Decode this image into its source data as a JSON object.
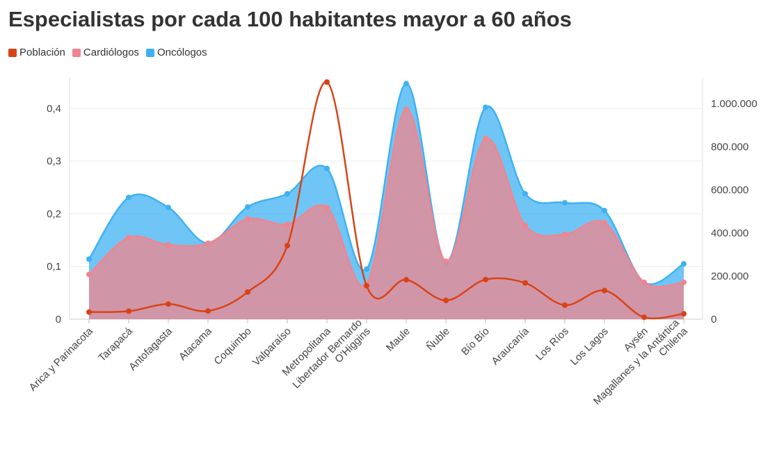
{
  "chart_data": {
    "type": "area",
    "title": "Especialistas por cada 100 habitantes mayor a 60 años",
    "categories": [
      "Arica y Parinacota",
      "Tarapacá",
      "Antofagasta",
      "Atacama",
      "Coquimbo",
      "Valparaíso",
      "Metropolitana",
      "Libertador Bernardo\nO'Higgins",
      "Maule",
      "Ñuble",
      "Bío Bío",
      "Araucanía",
      "Los Ríos",
      "Los Lagos",
      "Aysén",
      "Magallanes y la Antártica\nChilena"
    ],
    "y_left": {
      "ticks": [
        0,
        0.1,
        0.2,
        0.3,
        0.4
      ],
      "tick_labels": [
        "0",
        "0,1",
        "0,2",
        "0,3",
        "0,4"
      ],
      "ylim": [
        0,
        0.45
      ]
    },
    "y_right": {
      "ticks": [
        0,
        200000,
        400000,
        600000,
        800000,
        1000000
      ],
      "tick_labels": [
        "0",
        "200.000",
        "400.000",
        "600.000",
        "800.000",
        "1.000.000"
      ],
      "ylim": [
        0,
        1100000
      ]
    },
    "grid": true,
    "legend_position": "top-left",
    "series": [
      {
        "name": "Población",
        "kind": "line",
        "axis": "right",
        "color": "#d84315",
        "values": [
          33000,
          37000,
          70000,
          38000,
          126000,
          341000,
          1100000,
          155000,
          183000,
          87000,
          184000,
          168000,
          65000,
          133000,
          9000,
          25000
        ]
      },
      {
        "name": "Cardiólogos",
        "kind": "area",
        "axis": "left",
        "color": "#f2848e",
        "values": [
          0.085,
          0.155,
          0.141,
          0.144,
          0.19,
          0.18,
          0.212,
          0.067,
          0.398,
          0.11,
          0.343,
          0.178,
          0.161,
          0.183,
          0.07,
          0.07
        ]
      },
      {
        "name": "Oncólogos",
        "kind": "area",
        "axis": "left",
        "color": "#3fb1f2",
        "values": [
          0.114,
          0.231,
          0.212,
          0.144,
          0.213,
          0.238,
          0.286,
          0.095,
          0.447,
          0.109,
          0.402,
          0.238,
          0.221,
          0.206,
          0.07,
          0.105
        ]
      }
    ]
  }
}
